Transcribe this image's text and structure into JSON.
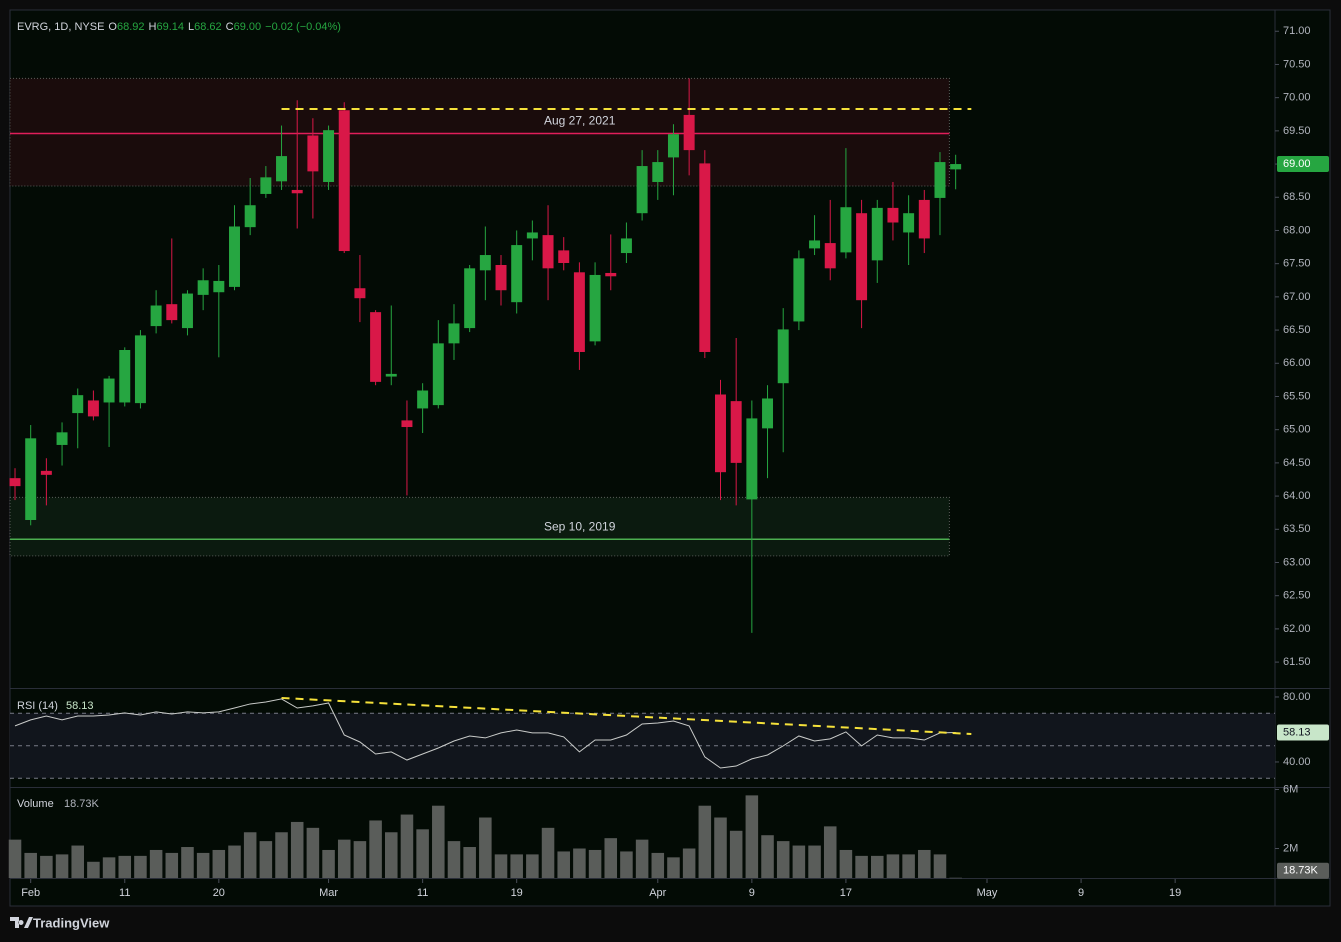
{
  "chart_data": [
    {
      "type": "candlestick",
      "legend": {
        "symbol": "EVRG, 1D, NYSE",
        "items": [
          {
            "key": "O",
            "value": "68.92"
          },
          {
            "key": "H",
            "value": "69.14"
          },
          {
            "key": "L",
            "value": "68.62"
          },
          {
            "key": "C",
            "value": "69.00"
          }
        ],
        "change": "−0.02 (−0.04%)"
      },
      "last_value_label": "69.00",
      "up_color": "#26a641",
      "down_color": "#d91848",
      "x": [
        0,
        1,
        2,
        3,
        4,
        5,
        6,
        7,
        8,
        9,
        10,
        11,
        12,
        13,
        14,
        15,
        16,
        17,
        18,
        19,
        20,
        21,
        22,
        23,
        24,
        25,
        26,
        27,
        28,
        29,
        30,
        31,
        32,
        33,
        34,
        35,
        36,
        37,
        38,
        39,
        40,
        41,
        42,
        43,
        44,
        45,
        46,
        47,
        48,
        49,
        50,
        51,
        52,
        53,
        54,
        55,
        56,
        57,
        58,
        59,
        60
      ],
      "open": [
        64.27,
        63.64,
        64.38,
        64.77,
        65.25,
        65.44,
        65.41,
        65.41,
        65.4,
        66.56,
        66.89,
        66.53,
        67.03,
        67.07,
        67.15,
        68.05,
        68.55,
        68.74,
        68.61,
        69.43,
        68.73,
        69.81,
        67.13,
        66.77,
        65.8,
        65.14,
        65.32,
        65.37,
        66.3,
        66.53,
        67.4,
        67.48,
        66.92,
        67.88,
        67.93,
        67.7,
        67.37,
        66.33,
        67.36,
        67.66,
        68.26,
        68.73,
        69.1,
        69.74,
        69.01,
        65.53,
        65.43,
        63.95,
        65.02,
        65.7,
        66.63,
        67.73,
        67.81,
        67.67,
        68.26,
        67.55,
        68.34,
        67.97,
        68.46,
        68.49,
        68.92
      ],
      "high": [
        64.42,
        65.07,
        64.57,
        65.11,
        65.62,
        65.59,
        65.81,
        66.24,
        66.5,
        67.1,
        67.88,
        67.1,
        67.43,
        67.48,
        68.38,
        68.79,
        68.97,
        69.58,
        69.96,
        69.69,
        69.58,
        69.93,
        67.63,
        66.8,
        66.87,
        65.44,
        65.7,
        66.65,
        66.89,
        67.48,
        68.06,
        67.63,
        68.0,
        68.15,
        68.38,
        67.9,
        67.52,
        67.52,
        67.94,
        68.12,
        69.21,
        69.21,
        69.6,
        70.29,
        69.21,
        65.75,
        66.38,
        65.44,
        65.67,
        66.83,
        67.7,
        68.23,
        68.46,
        69.24,
        68.46,
        68.46,
        68.73,
        68.53,
        68.61,
        69.18,
        69.14
      ],
      "low": [
        63.94,
        63.56,
        63.86,
        64.46,
        64.72,
        65.14,
        64.74,
        65.35,
        65.32,
        66.45,
        66.6,
        66.42,
        66.8,
        66.09,
        67.1,
        67.93,
        68.49,
        68.61,
        68.03,
        68.18,
        68.61,
        67.66,
        66.62,
        65.67,
        65.67,
        64.01,
        64.95,
        65.32,
        66.05,
        66.47,
        66.95,
        66.87,
        66.75,
        67.55,
        66.95,
        67.4,
        65.9,
        66.27,
        67.1,
        67.51,
        68.15,
        68.46,
        68.53,
        68.83,
        66.08,
        63.94,
        63.86,
        61.94,
        64.27,
        64.66,
        66.5,
        67.63,
        67.25,
        67.58,
        66.53,
        67.21,
        67.85,
        67.48,
        67.66,
        67.93,
        68.62
      ],
      "close": [
        64.15,
        64.87,
        64.32,
        64.96,
        65.52,
        65.2,
        65.77,
        66.2,
        66.42,
        66.87,
        66.65,
        67.05,
        67.25,
        67.24,
        68.06,
        68.38,
        68.8,
        69.12,
        68.56,
        68.89,
        69.51,
        67.69,
        66.98,
        65.72,
        65.84,
        65.04,
        65.59,
        66.3,
        66.6,
        67.43,
        67.63,
        67.1,
        67.78,
        67.97,
        67.43,
        67.51,
        66.17,
        67.33,
        67.31,
        67.88,
        68.97,
        69.03,
        69.45,
        69.21,
        66.17,
        64.36,
        64.5,
        65.17,
        65.47,
        66.51,
        67.58,
        67.85,
        67.43,
        68.35,
        66.95,
        68.34,
        68.12,
        68.26,
        67.88,
        69.03,
        69.0
      ],
      "xlim": [
        -0.32,
        80.37
      ],
      "xticks": [
        {
          "value": 1,
          "label": "Feb"
        },
        {
          "value": 7,
          "label": "11"
        },
        {
          "value": 13,
          "label": "20"
        },
        {
          "value": 20,
          "label": "Mar"
        },
        {
          "value": 26,
          "label": "11"
        },
        {
          "value": 32,
          "label": "19"
        },
        {
          "value": 41,
          "label": "Apr"
        },
        {
          "value": 47,
          "label": "9"
        },
        {
          "value": 53,
          "label": "17"
        },
        {
          "value": 62,
          "label": "May"
        },
        {
          "value": 68,
          "label": "9"
        },
        {
          "value": 74,
          "label": "19"
        }
      ],
      "ylim": [
        61.11,
        71.32
      ],
      "yticks": [
        {
          "value": 61.5,
          "label": "61.50"
        },
        {
          "value": 62,
          "label": "62.00"
        },
        {
          "value": 62.5,
          "label": "62.50"
        },
        {
          "value": 63,
          "label": "63.00"
        },
        {
          "value": 63.5,
          "label": "63.50"
        },
        {
          "value": 64,
          "label": "64.00"
        },
        {
          "value": 64.5,
          "label": "64.50"
        },
        {
          "value": 65,
          "label": "65.00"
        },
        {
          "value": 65.5,
          "label": "65.50"
        },
        {
          "value": 66,
          "label": "66.00"
        },
        {
          "value": 66.5,
          "label": "66.50"
        },
        {
          "value": 67,
          "label": "67.00"
        },
        {
          "value": 67.5,
          "label": "67.50"
        },
        {
          "value": 68,
          "label": "68.00"
        },
        {
          "value": 68.5,
          "label": "68.50"
        },
        {
          "value": 69,
          "label": "69.00"
        },
        {
          "value": 69.5,
          "label": "69.50"
        },
        {
          "value": 70,
          "label": "70.00"
        },
        {
          "value": 70.5,
          "label": "70.50"
        },
        {
          "value": 71,
          "label": "71.00"
        }
      ],
      "zones": [
        {
          "label": "Aug 27, 2021",
          "top": 70.29,
          "bottom": 68.67,
          "level": 69.46,
          "x_end": 59.6,
          "color": "#e01e5a",
          "fill": "#1a0c0c"
        },
        {
          "label": "Sep 10, 2019",
          "top": 63.98,
          "bottom": 63.1,
          "level": 63.35,
          "x_end": 59.6,
          "color": "#4caf50",
          "fill": "#0b1a0f"
        }
      ],
      "trendlines": [
        {
          "points": [
            [
              17,
              69.83
            ],
            [
              61,
              69.83
            ]
          ],
          "color": "#f5e13a"
        }
      ]
    },
    {
      "type": "line",
      "title": "RSI (14)",
      "last_value_label": "58.13",
      "color": "#c9cbc9",
      "values": [
        62.2,
        65.9,
        68.3,
        65.9,
        68.3,
        68.3,
        68.9,
        70.2,
        68.9,
        70.8,
        69.5,
        70.8,
        70.2,
        70.8,
        73.2,
        75.7,
        76.9,
        78.8,
        73.2,
        74.5,
        76.3,
        56.6,
        52.3,
        44.9,
        46.2,
        41.2,
        44.9,
        48.6,
        52.9,
        56.0,
        54.8,
        57.9,
        59.7,
        57.9,
        57.9,
        55.4,
        46.2,
        53.5,
        53.5,
        56.6,
        63.4,
        64.0,
        65.2,
        62.2,
        43.1,
        36.3,
        37.5,
        41.9,
        44.3,
        49.9,
        56.0,
        52.9,
        54.2,
        58.5,
        49.9,
        56.6,
        54.8,
        54.8,
        53.5,
        57.9,
        58.13
      ],
      "ylim": [
        24.6,
        84.9
      ],
      "yticks": [
        {
          "value": 80,
          "label": "80.00"
        },
        {
          "value": 40,
          "label": "40.00"
        }
      ],
      "levels": [
        70,
        50,
        30
      ],
      "trendlines": [
        {
          "points": [
            [
              17,
              79.4
            ],
            [
              61,
              57.2
            ]
          ],
          "color": "#f5e13a"
        }
      ]
    },
    {
      "type": "bar",
      "title": "Volume",
      "last_value_label": "18.73K",
      "color": "#5a5d5a",
      "values": [
        2600000,
        1700000,
        1500000,
        1600000,
        2200000,
        1100000,
        1400000,
        1500000,
        1500000,
        1900000,
        1700000,
        2100000,
        1700000,
        1900000,
        2200000,
        3100000,
        2500000,
        3100000,
        3800000,
        3400000,
        1900000,
        2600000,
        2500000,
        3900000,
        3100000,
        4300000,
        3300000,
        4900000,
        2500000,
        2100000,
        4100000,
        1600000,
        1600000,
        1600000,
        3400000,
        1800000,
        2000000,
        1900000,
        2700000,
        1800000,
        2600000,
        1700000,
        1400000,
        2000000,
        4900000,
        4100000,
        3200000,
        5600000,
        2900000,
        2500000,
        2200000,
        2200000,
        3500000,
        1900000,
        1500000,
        1500000,
        1600000,
        1600000,
        1900000,
        1600000,
        18730
      ],
      "ylim": [
        0,
        6100000
      ],
      "yticks": [
        {
          "value": 6000000,
          "label": "6M"
        },
        {
          "value": 2000000,
          "label": "2M"
        }
      ]
    }
  ],
  "footer": {
    "brand": "TradingView"
  }
}
